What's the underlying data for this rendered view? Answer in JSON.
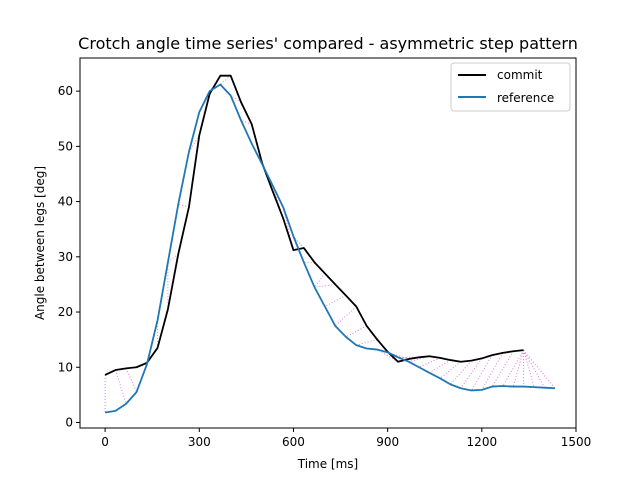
{
  "chart_data": {
    "type": "line",
    "title": "Crotch angle time series' compared - asymmetric step pattern",
    "xlabel": "Time [ms]",
    "ylabel": "Angle between legs [deg]",
    "xlim": [
      -80,
      1500
    ],
    "ylim": [
      -1,
      66
    ],
    "xticks": [
      0,
      300,
      600,
      900,
      1200,
      1500
    ],
    "yticks": [
      0,
      10,
      20,
      30,
      40,
      50,
      60
    ],
    "grid": false,
    "legend_position": "top-right",
    "series": [
      {
        "name": "commit",
        "color": "#000000",
        "points": [
          [
            0,
            8.6
          ],
          [
            33,
            9.5
          ],
          [
            67,
            9.8
          ],
          [
            100,
            10.0
          ],
          [
            133,
            10.8
          ],
          [
            167,
            13.5
          ],
          [
            200,
            20.5
          ],
          [
            233,
            30.5
          ],
          [
            267,
            39.0
          ],
          [
            300,
            52.0
          ],
          [
            333,
            59.5
          ],
          [
            367,
            62.8
          ],
          [
            400,
            62.8
          ],
          [
            433,
            58.0
          ],
          [
            467,
            54.0
          ],
          [
            500,
            47.0
          ],
          [
            533,
            42.0
          ],
          [
            567,
            37.0
          ],
          [
            600,
            31.2
          ],
          [
            633,
            31.6
          ],
          [
            667,
            29.0
          ],
          [
            700,
            27.0
          ],
          [
            733,
            25.0
          ],
          [
            767,
            23.0
          ],
          [
            800,
            21.0
          ],
          [
            833,
            17.5
          ],
          [
            867,
            15.0
          ],
          [
            900,
            12.8
          ],
          [
            933,
            11.0
          ],
          [
            967,
            11.5
          ],
          [
            1000,
            11.8
          ],
          [
            1033,
            12.0
          ],
          [
            1067,
            11.7
          ],
          [
            1100,
            11.3
          ],
          [
            1133,
            11.0
          ],
          [
            1167,
            11.2
          ],
          [
            1200,
            11.6
          ],
          [
            1233,
            12.2
          ],
          [
            1267,
            12.6
          ],
          [
            1300,
            12.9
          ],
          [
            1333,
            13.1
          ]
        ]
      },
      {
        "name": "reference",
        "color": "#1f77b4",
        "points": [
          [
            0,
            1.8
          ],
          [
            33,
            2.1
          ],
          [
            67,
            3.4
          ],
          [
            100,
            5.5
          ],
          [
            133,
            10.5
          ],
          [
            167,
            18.5
          ],
          [
            200,
            29.0
          ],
          [
            233,
            39.5
          ],
          [
            267,
            49.0
          ],
          [
            300,
            56.2
          ],
          [
            333,
            60.0
          ],
          [
            367,
            61.2
          ],
          [
            400,
            59.2
          ],
          [
            433,
            54.7
          ],
          [
            467,
            50.5
          ],
          [
            500,
            46.8
          ],
          [
            533,
            43.0
          ],
          [
            567,
            39.0
          ],
          [
            600,
            33.7
          ],
          [
            633,
            29.0
          ],
          [
            667,
            24.5
          ],
          [
            700,
            21.0
          ],
          [
            733,
            17.5
          ],
          [
            767,
            15.5
          ],
          [
            800,
            14.0
          ],
          [
            833,
            13.4
          ],
          [
            867,
            13.2
          ],
          [
            900,
            12.7
          ],
          [
            933,
            11.8
          ],
          [
            967,
            11.0
          ],
          [
            1000,
            10.0
          ],
          [
            1033,
            9.0
          ],
          [
            1067,
            8.0
          ],
          [
            1100,
            6.9
          ],
          [
            1133,
            6.2
          ],
          [
            1167,
            5.8
          ],
          [
            1200,
            5.9
          ],
          [
            1233,
            6.5
          ],
          [
            1267,
            6.6
          ],
          [
            1300,
            6.5
          ],
          [
            1333,
            6.5
          ],
          [
            1367,
            6.4
          ],
          [
            1400,
            6.3
          ],
          [
            1433,
            6.2
          ]
        ]
      }
    ],
    "alignment": {
      "color": "#e377e3",
      "pairs": [
        [
          0,
          0
        ],
        [
          1,
          2
        ],
        [
          2,
          3
        ],
        [
          3,
          4
        ],
        [
          4,
          4
        ],
        [
          5,
          5
        ],
        [
          6,
          6
        ],
        [
          7,
          6
        ],
        [
          8,
          7
        ],
        [
          9,
          8
        ],
        [
          10,
          9
        ],
        [
          11,
          10
        ],
        [
          12,
          11
        ],
        [
          13,
          12
        ],
        [
          14,
          13
        ],
        [
          15,
          14
        ],
        [
          16,
          15
        ],
        [
          17,
          16
        ],
        [
          18,
          17
        ],
        [
          19,
          18
        ],
        [
          20,
          19
        ],
        [
          21,
          20
        ],
        [
          22,
          20
        ],
        [
          23,
          21
        ],
        [
          24,
          22
        ],
        [
          25,
          23
        ],
        [
          26,
          24
        ],
        [
          27,
          25
        ],
        [
          28,
          26
        ],
        [
          29,
          27
        ],
        [
          30,
          28
        ],
        [
          31,
          29
        ],
        [
          32,
          30
        ],
        [
          33,
          31
        ],
        [
          34,
          32
        ],
        [
          35,
          33
        ],
        [
          36,
          34
        ],
        [
          37,
          35
        ],
        [
          38,
          36
        ],
        [
          39,
          37
        ],
        [
          40,
          38
        ],
        [
          40,
          39
        ],
        [
          40,
          40
        ],
        [
          40,
          41
        ],
        [
          40,
          42
        ],
        [
          40,
          43
        ]
      ]
    }
  }
}
